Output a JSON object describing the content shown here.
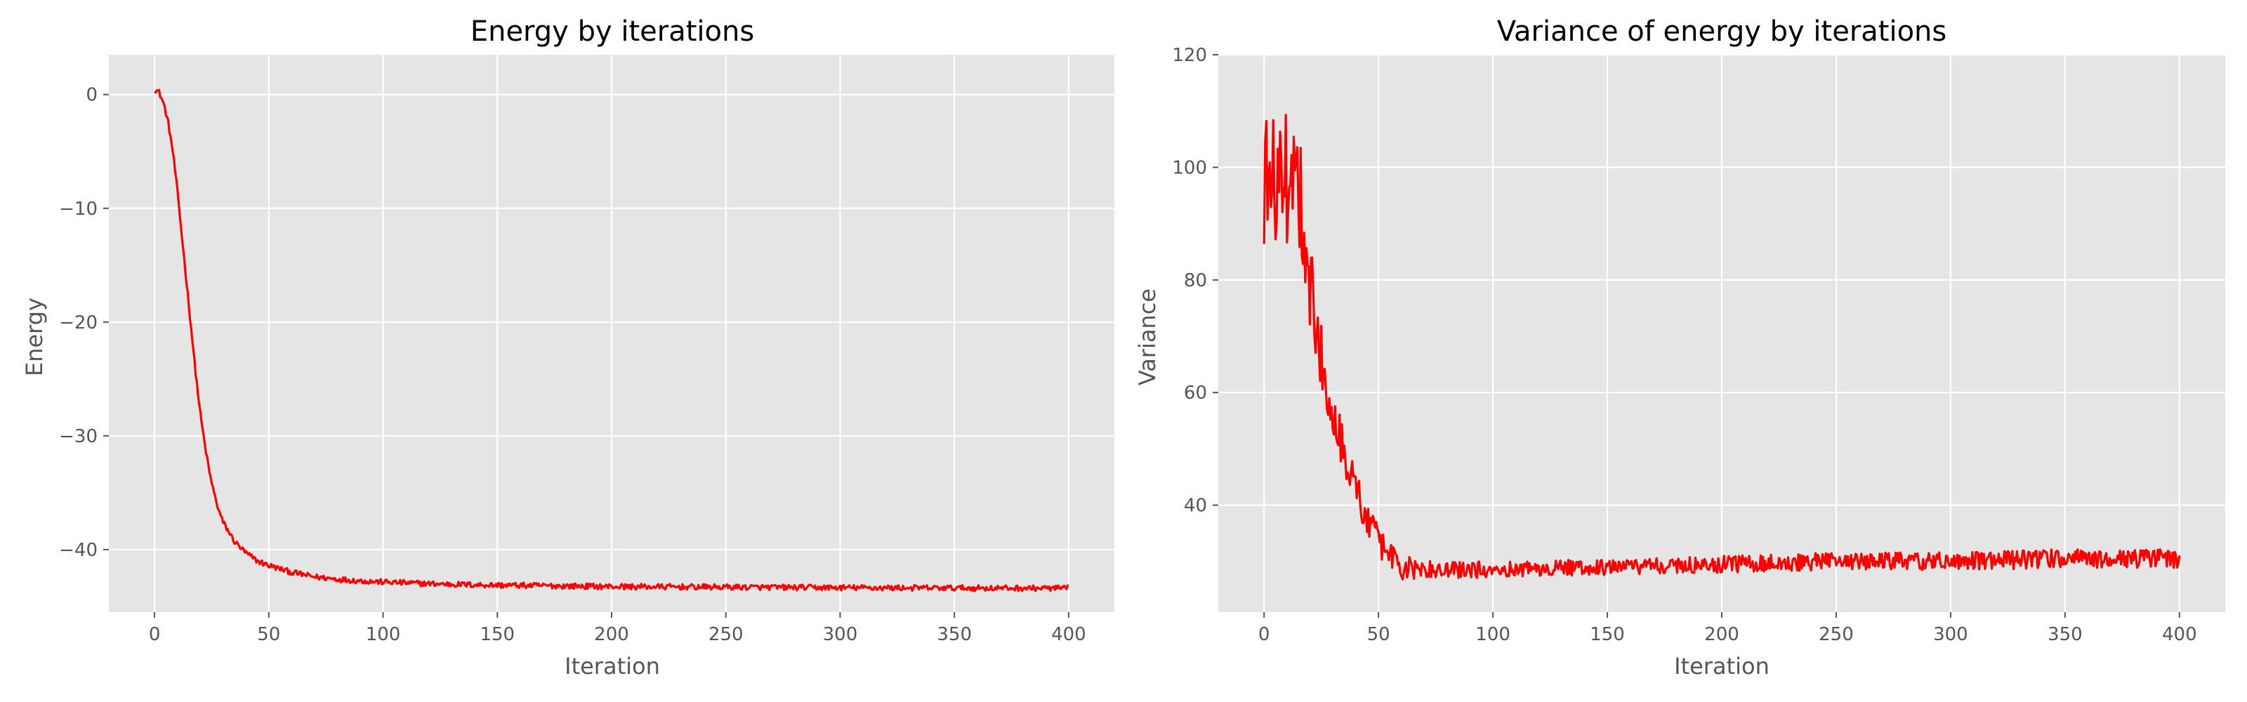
{
  "chart_data": [
    {
      "type": "line",
      "title": "Energy by iterations",
      "xlabel": "Iteration",
      "ylabel": "Energy",
      "xlim": [
        -20,
        420
      ],
      "ylim": [
        -45.5,
        3.5
      ],
      "xticks": [
        0,
        50,
        100,
        150,
        200,
        250,
        300,
        350,
        400
      ],
      "yticks": [
        0,
        -10,
        -20,
        -30,
        -40
      ],
      "ytick_labels": [
        "0",
        "−10",
        "−20",
        "−30",
        "−40"
      ],
      "grid": true,
      "style": "ggplot",
      "series": [
        {
          "color": "#ff0000",
          "x": [
            0,
            2,
            4,
            6,
            8,
            10,
            12,
            14,
            16,
            18,
            20,
            22,
            24,
            26,
            28,
            30,
            35,
            40,
            45,
            50,
            55,
            60,
            70,
            80,
            90,
            100,
            120,
            140,
            160,
            180,
            200,
            250,
            300,
            350,
            400
          ],
          "y": [
            0.5,
            0.2,
            -0.8,
            -2.5,
            -5.0,
            -8.5,
            -12.5,
            -16.5,
            -20.5,
            -24.5,
            -28.0,
            -30.8,
            -33.2,
            -35.0,
            -36.5,
            -37.6,
            -39.3,
            -40.3,
            -41.0,
            -41.4,
            -41.7,
            -42.0,
            -42.4,
            -42.6,
            -42.75,
            -42.85,
            -43.0,
            -43.1,
            -43.15,
            -43.2,
            -43.25,
            -43.3,
            -43.35,
            -43.38,
            -43.4
          ],
          "noise": 0.25
        }
      ]
    },
    {
      "type": "line",
      "title": "Variance of energy by iterations",
      "xlabel": "Iteration",
      "ylabel": "Variance",
      "xlim": [
        -20,
        420
      ],
      "ylim": [
        21,
        120
      ],
      "xticks": [
        0,
        50,
        100,
        150,
        200,
        250,
        300,
        350,
        400
      ],
      "yticks": [
        40,
        60,
        80,
        100,
        120
      ],
      "ytick_labels": [
        "40",
        "60",
        "80",
        "100",
        "120"
      ],
      "grid": true,
      "style": "ggplot",
      "series": [
        {
          "color": "#ff0000",
          "x": [
            0,
            5,
            10,
            15,
            20,
            25,
            30,
            35,
            40,
            45,
            50,
            55,
            60,
            65,
            70,
            80,
            90,
            100,
            150,
            200,
            250,
            300,
            350,
            400
          ],
          "y": [
            97,
            98,
            98,
            98,
            80,
            66,
            57,
            50,
            43,
            37,
            34,
            31,
            29,
            28.5,
            28.5,
            28.5,
            28.5,
            28.6,
            29,
            29.5,
            30,
            30,
            30.5,
            30.5
          ],
          "noise": [
            12,
            12,
            12,
            12,
            8,
            6,
            5,
            4.5,
            4,
            3.5,
            3,
            2.5,
            2.5,
            2,
            1.6,
            1.5,
            1.5,
            1.4,
            1.4,
            1.5,
            1.6,
            1.6,
            1.7,
            1.7
          ]
        }
      ]
    }
  ]
}
